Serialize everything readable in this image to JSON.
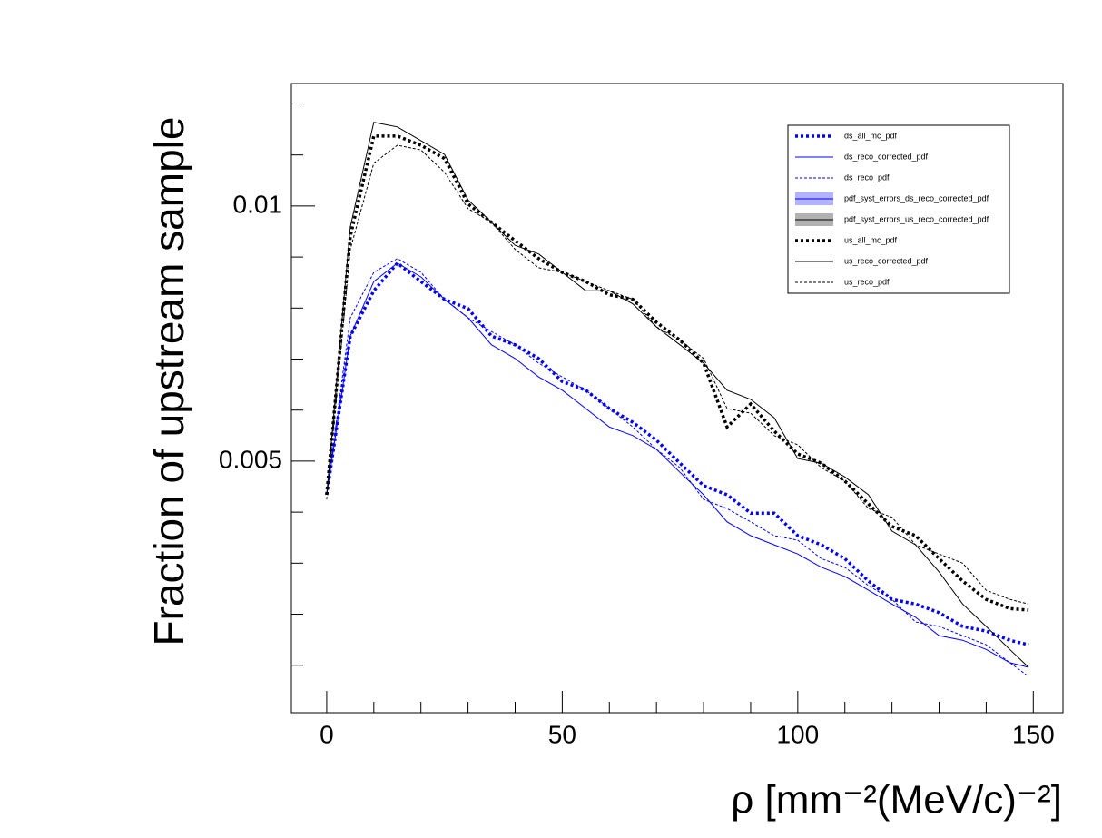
{
  "chart_data": {
    "type": "line",
    "x_label": "ρ [mm⁻²(MeV/c)⁻²]",
    "y_label": "Fraction of upstream sample",
    "x": [
      0,
      5,
      10,
      15,
      20,
      25,
      30,
      35,
      40,
      45,
      50,
      55,
      60,
      65,
      70,
      75,
      80,
      85,
      90,
      95,
      100,
      105,
      110,
      115,
      120,
      125,
      130,
      135,
      140,
      145,
      149
    ],
    "xlim": [
      -7.5,
      156.3
    ],
    "xticks": [
      0,
      50,
      100,
      150
    ],
    "xticks_minor": [
      10,
      20,
      30,
      40,
      60,
      70,
      80,
      90,
      110,
      120,
      130,
      140
    ],
    "ylim": [
      7e-05,
      0.0124
    ],
    "yticks": [
      0.005,
      0.01
    ],
    "yticks_minor": [
      0.001,
      0.002,
      0.003,
      0.004,
      0.006,
      0.007,
      0.008,
      0.009,
      0.011,
      0.012
    ],
    "legend": "upper right",
    "series": [
      {
        "name": "ds_all_mc_pdf",
        "color": "#0000ff",
        "style": "dotted",
        "values": [
          0.00434,
          0.00745,
          0.00834,
          0.00888,
          0.00852,
          0.00817,
          0.00799,
          0.00745,
          0.00728,
          0.00701,
          0.00656,
          0.00639,
          0.00603,
          0.00576,
          0.00541,
          0.00496,
          0.00452,
          0.00434,
          0.00398,
          0.00398,
          0.00354,
          0.00336,
          0.00309,
          0.00265,
          0.00229,
          0.0022,
          0.00203,
          0.00176,
          0.00167,
          0.00149,
          0.0014
        ]
      },
      {
        "name": "ds_reco_corrected_pdf",
        "color": "#0000ff",
        "style": "solid",
        "values": [
          0.00434,
          0.00745,
          0.00852,
          0.00888,
          0.00861,
          0.00817,
          0.00781,
          0.00728,
          0.00701,
          0.00665,
          0.00639,
          0.00603,
          0.00567,
          0.0055,
          0.00523,
          0.00478,
          0.00434,
          0.00381,
          0.00354,
          0.00336,
          0.00318,
          0.00292,
          0.00274,
          0.00247,
          0.0022,
          0.00194,
          0.00158,
          0.00149,
          0.00131,
          0.00105,
          0.00096
        ]
      },
      {
        "name": "ds_reco_pdf",
        "color": "#0000ff",
        "style": "dashed",
        "values": [
          0.00434,
          0.00781,
          0.0087,
          0.00897,
          0.0087,
          0.00817,
          0.00781,
          0.00754,
          0.00728,
          0.00692,
          0.00665,
          0.00639,
          0.00603,
          0.00567,
          0.00523,
          0.00487,
          0.00425,
          0.00407,
          0.00381,
          0.00354,
          0.00345,
          0.00309,
          0.00292,
          0.00256,
          0.00229,
          0.00185,
          0.00176,
          0.00158,
          0.0014,
          0.00105,
          0.00078
        ]
      },
      {
        "name": "pdf_syst_errors_ds_reco_corrected_pdf",
        "color": "#0000ff",
        "style": "band"
      },
      {
        "name": "pdf_syst_errors_us_reco_corrected_pdf",
        "color": "#000000",
        "style": "band"
      },
      {
        "name": "us_all_mc_pdf",
        "color": "#000000",
        "style": "dotted",
        "values": [
          0.00434,
          0.00941,
          0.01137,
          0.01137,
          0.01119,
          0.01093,
          0.01004,
          0.00968,
          0.00932,
          0.00897,
          0.0087,
          0.00852,
          0.00826,
          0.00817,
          0.00772,
          0.00737,
          0.00692,
          0.00567,
          0.00612,
          0.00559,
          0.00514,
          0.00496,
          0.00461,
          0.00416,
          0.00372,
          0.00354,
          0.00309,
          0.00265,
          0.00229,
          0.00211,
          0.00208
        ]
      },
      {
        "name": "us_reco_corrected_pdf",
        "color": "#000000",
        "style": "solid",
        "values": [
          0.00434,
          0.00959,
          0.01164,
          0.01155,
          0.01128,
          0.01101,
          0.01012,
          0.00968,
          0.00923,
          0.00906,
          0.0087,
          0.00834,
          0.00834,
          0.00808,
          0.00763,
          0.00728,
          0.00692,
          0.00639,
          0.00621,
          0.00585,
          0.00505,
          0.00496,
          0.00469,
          0.00434,
          0.00363,
          0.00336,
          0.00283,
          0.0022,
          0.00176,
          0.00131,
          0.00096
        ]
      },
      {
        "name": "us_reco_pdf",
        "color": "#000000",
        "style": "dashed",
        "values": [
          0.00425,
          0.00915,
          0.01084,
          0.01119,
          0.0111,
          0.01066,
          0.00995,
          0.00968,
          0.00915,
          0.00879,
          0.0087,
          0.00852,
          0.00834,
          0.00817,
          0.00763,
          0.00737,
          0.00701,
          0.00603,
          0.00594,
          0.0055,
          0.00532,
          0.00487,
          0.00461,
          0.00407,
          0.0039,
          0.00336,
          0.00318,
          0.003,
          0.00247,
          0.00229,
          0.0022
        ]
      }
    ]
  }
}
